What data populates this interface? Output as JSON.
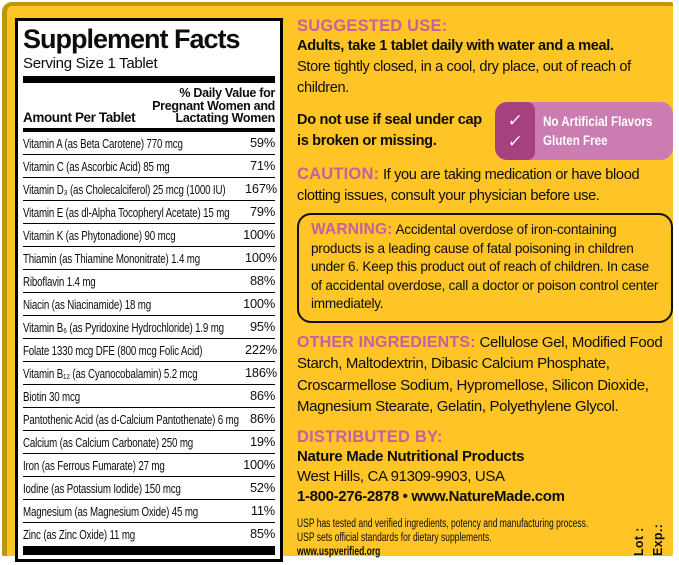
{
  "colors": {
    "bg_yellow": "#FFC426",
    "border_gold": "#C3940F",
    "pink": "#C4619E",
    "badge_light": "#CB7CB1",
    "badge_dark": "#A6417F"
  },
  "supplement_facts": {
    "title": "Supplement Facts",
    "serving_size": "Serving Size 1 Tablet",
    "amount_header": "Amount Per Tablet",
    "dv_header": "% Daily Value for\nPregnant Women and\nLactating Women",
    "rows": [
      {
        "name": "Vitamin A (as Beta Carotene)  770 mcg",
        "dv": "59%"
      },
      {
        "name": "Vitamin C (as Ascorbic Acid)  85 mg",
        "dv": "71%"
      },
      {
        "name": "Vitamin D₃ (as Cholecalciferol)  25 mcg (1000 IU)",
        "dv": "167%"
      },
      {
        "name": "Vitamin E (as dl-Alpha Tocopheryl Acetate)  15 mg",
        "dv": "79%"
      },
      {
        "name": "Vitamin K (as Phytonadione)  90 mcg",
        "dv": "100%"
      },
      {
        "name": "Thiamin (as Thiamine Mononitrate)  1.4 mg",
        "dv": "100%"
      },
      {
        "name": "Riboflavin  1.4 mg",
        "dv": "88%"
      },
      {
        "name": "Niacin (as Niacinamide)  18 mg",
        "dv": "100%"
      },
      {
        "name": "Vitamin B₆ (as Pyridoxine Hydrochloride)  1.9 mg",
        "dv": "95%"
      },
      {
        "name": "Folate  1330 mcg DFE (800 mcg Folic Acid)",
        "dv": "222%"
      },
      {
        "name": "Vitamin B₁₂ (as Cyanocobalamin)  5.2 mcg",
        "dv": "186%"
      },
      {
        "name": "Biotin  30 mcg",
        "dv": "86%"
      },
      {
        "name": "Pantothenic Acid (as d-Calcium Pantothenate)  6 mg",
        "dv": "86%"
      },
      {
        "name": "Calcium (as Calcium Carbonate)  250 mg",
        "dv": "19%"
      },
      {
        "name": "Iron (as Ferrous Fumarate)  27 mg",
        "dv": "100%"
      },
      {
        "name": "Iodine (as Potassium Iodide)  150 mcg",
        "dv": "52%"
      },
      {
        "name": "Magnesium (as Magnesium Oxide)  45 mg",
        "dv": "11%"
      },
      {
        "name": "Zinc (as Zinc Oxide)  11 mg",
        "dv": "85%"
      }
    ]
  },
  "right": {
    "suggested_use": {
      "label": "SUGGESTED USE:",
      "line1": "Adults, take 1 tablet daily with water and a meal.",
      "line2": "Store tightly closed, in a cool, dry place, out of reach of children.",
      "line3": "Do not use if seal under cap is broken or missing."
    },
    "badge": {
      "check": "✓",
      "items": [
        {
          "text": "No Artificial Flavors"
        },
        {
          "text": "Gluten Free"
        }
      ]
    },
    "caution": {
      "label": "CAUTION:",
      "text": " If you are taking medication or have blood clotting issues, consult your physician before use."
    },
    "warning": {
      "label": "WARNING:",
      "text": " Accidental overdose of iron-containing products is a leading cause of fatal poisoning in children under 6. Keep this product out of reach of children. In case of accidental overdose, call a doctor or poison control center immediately."
    },
    "other_ingredients": {
      "label": "OTHER INGREDIENTS:",
      "text": " Cellulose Gel, Modified Food Starch, Maltodextrin, Dibasic Calcium Phosphate, Croscarmellose Sodium, Hypromellose, Silicon Dioxide, Magnesium Stearate, Gelatin, Polyethylene Glycol."
    },
    "distributed_by": {
      "label": "DISTRIBUTED BY:",
      "name": "Nature Made Nutritional Products",
      "address": "West Hills, CA 91309-9903, USA",
      "phone_web": "1-800-276-2878 • www.NatureMade.com"
    },
    "usp": {
      "line1": "USP has tested and verified ingredients, potency and manufacturing process.",
      "line2": "USP sets official standards for dietary supplements.",
      "url": "www.uspverified.org"
    },
    "lot": "Lot :",
    "exp": "Exp.:"
  }
}
